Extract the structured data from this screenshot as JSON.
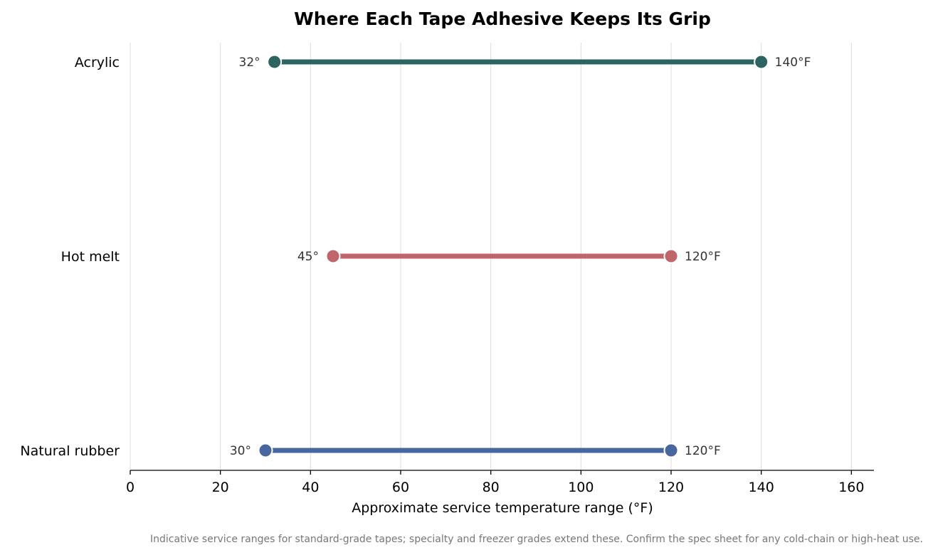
{
  "chart_data": {
    "type": "range",
    "title": "Where Each Tape Adhesive Keeps Its Grip",
    "xlabel": "Approximate service temperature range (°F)",
    "ylabel": "",
    "xlim": [
      0,
      165
    ],
    "xticks": [
      0,
      20,
      40,
      60,
      80,
      100,
      120,
      140,
      160
    ],
    "grid": "vertical",
    "categories": [
      "Acrylic",
      "Hot melt",
      "Natural rubber"
    ],
    "series": [
      {
        "category": "Acrylic",
        "low": 32,
        "high": 140,
        "low_label": "32°",
        "high_label": "140°F",
        "color": "#2d6460"
      },
      {
        "category": "Hot melt",
        "low": 45,
        "high": 120,
        "low_label": "45°",
        "high_label": "120°F",
        "color": "#c0666a"
      },
      {
        "category": "Natural rubber",
        "low": 30,
        "high": 120,
        "low_label": "30°",
        "high_label": "120°F",
        "color": "#4866a0"
      }
    ]
  },
  "footnote": "Indicative service ranges for standard-grade tapes; specialty and freezer grades extend these. Confirm the spec sheet for any cold-chain or high-heat use."
}
